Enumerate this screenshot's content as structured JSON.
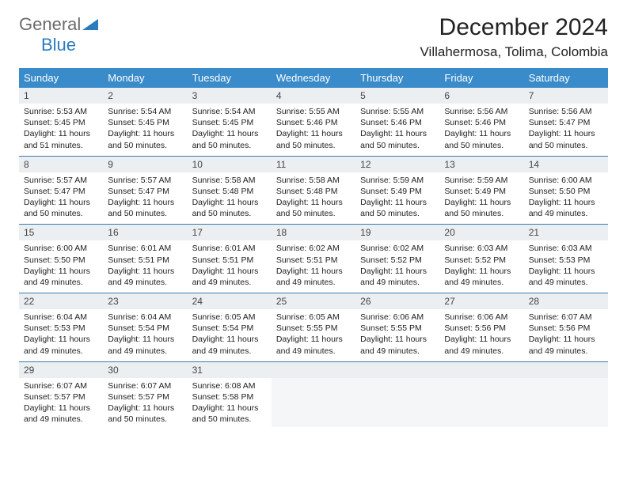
{
  "logo": {
    "part1": "General",
    "part2": "Blue"
  },
  "title": "December 2024",
  "location": "Villahermosa, Tolima, Colombia",
  "colors": {
    "header_bg": "#3a8bc9",
    "header_text": "#ffffff",
    "daynum_bg": "#eceff1",
    "week_border": "#3a7ab0",
    "logo_gray": "#6b6b6b",
    "logo_blue": "#2b7bbf"
  },
  "day_names": [
    "Sunday",
    "Monday",
    "Tuesday",
    "Wednesday",
    "Thursday",
    "Friday",
    "Saturday"
  ],
  "weeks": [
    [
      {
        "n": "1",
        "sunrise": "5:53 AM",
        "sunset": "5:45 PM",
        "dl1": "11 hours",
        "dl2": "and 51 minutes."
      },
      {
        "n": "2",
        "sunrise": "5:54 AM",
        "sunset": "5:45 PM",
        "dl1": "11 hours",
        "dl2": "and 50 minutes."
      },
      {
        "n": "3",
        "sunrise": "5:54 AM",
        "sunset": "5:45 PM",
        "dl1": "11 hours",
        "dl2": "and 50 minutes."
      },
      {
        "n": "4",
        "sunrise": "5:55 AM",
        "sunset": "5:46 PM",
        "dl1": "11 hours",
        "dl2": "and 50 minutes."
      },
      {
        "n": "5",
        "sunrise": "5:55 AM",
        "sunset": "5:46 PM",
        "dl1": "11 hours",
        "dl2": "and 50 minutes."
      },
      {
        "n": "6",
        "sunrise": "5:56 AM",
        "sunset": "5:46 PM",
        "dl1": "11 hours",
        "dl2": "and 50 minutes."
      },
      {
        "n": "7",
        "sunrise": "5:56 AM",
        "sunset": "5:47 PM",
        "dl1": "11 hours",
        "dl2": "and 50 minutes."
      }
    ],
    [
      {
        "n": "8",
        "sunrise": "5:57 AM",
        "sunset": "5:47 PM",
        "dl1": "11 hours",
        "dl2": "and 50 minutes."
      },
      {
        "n": "9",
        "sunrise": "5:57 AM",
        "sunset": "5:47 PM",
        "dl1": "11 hours",
        "dl2": "and 50 minutes."
      },
      {
        "n": "10",
        "sunrise": "5:58 AM",
        "sunset": "5:48 PM",
        "dl1": "11 hours",
        "dl2": "and 50 minutes."
      },
      {
        "n": "11",
        "sunrise": "5:58 AM",
        "sunset": "5:48 PM",
        "dl1": "11 hours",
        "dl2": "and 50 minutes."
      },
      {
        "n": "12",
        "sunrise": "5:59 AM",
        "sunset": "5:49 PM",
        "dl1": "11 hours",
        "dl2": "and 50 minutes."
      },
      {
        "n": "13",
        "sunrise": "5:59 AM",
        "sunset": "5:49 PM",
        "dl1": "11 hours",
        "dl2": "and 50 minutes."
      },
      {
        "n": "14",
        "sunrise": "6:00 AM",
        "sunset": "5:50 PM",
        "dl1": "11 hours",
        "dl2": "and 49 minutes."
      }
    ],
    [
      {
        "n": "15",
        "sunrise": "6:00 AM",
        "sunset": "5:50 PM",
        "dl1": "11 hours",
        "dl2": "and 49 minutes."
      },
      {
        "n": "16",
        "sunrise": "6:01 AM",
        "sunset": "5:51 PM",
        "dl1": "11 hours",
        "dl2": "and 49 minutes."
      },
      {
        "n": "17",
        "sunrise": "6:01 AM",
        "sunset": "5:51 PM",
        "dl1": "11 hours",
        "dl2": "and 49 minutes."
      },
      {
        "n": "18",
        "sunrise": "6:02 AM",
        "sunset": "5:51 PM",
        "dl1": "11 hours",
        "dl2": "and 49 minutes."
      },
      {
        "n": "19",
        "sunrise": "6:02 AM",
        "sunset": "5:52 PM",
        "dl1": "11 hours",
        "dl2": "and 49 minutes."
      },
      {
        "n": "20",
        "sunrise": "6:03 AM",
        "sunset": "5:52 PM",
        "dl1": "11 hours",
        "dl2": "and 49 minutes."
      },
      {
        "n": "21",
        "sunrise": "6:03 AM",
        "sunset": "5:53 PM",
        "dl1": "11 hours",
        "dl2": "and 49 minutes."
      }
    ],
    [
      {
        "n": "22",
        "sunrise": "6:04 AM",
        "sunset": "5:53 PM",
        "dl1": "11 hours",
        "dl2": "and 49 minutes."
      },
      {
        "n": "23",
        "sunrise": "6:04 AM",
        "sunset": "5:54 PM",
        "dl1": "11 hours",
        "dl2": "and 49 minutes."
      },
      {
        "n": "24",
        "sunrise": "6:05 AM",
        "sunset": "5:54 PM",
        "dl1": "11 hours",
        "dl2": "and 49 minutes."
      },
      {
        "n": "25",
        "sunrise": "6:05 AM",
        "sunset": "5:55 PM",
        "dl1": "11 hours",
        "dl2": "and 49 minutes."
      },
      {
        "n": "26",
        "sunrise": "6:06 AM",
        "sunset": "5:55 PM",
        "dl1": "11 hours",
        "dl2": "and 49 minutes."
      },
      {
        "n": "27",
        "sunrise": "6:06 AM",
        "sunset": "5:56 PM",
        "dl1": "11 hours",
        "dl2": "and 49 minutes."
      },
      {
        "n": "28",
        "sunrise": "6:07 AM",
        "sunset": "5:56 PM",
        "dl1": "11 hours",
        "dl2": "and 49 minutes."
      }
    ],
    [
      {
        "n": "29",
        "sunrise": "6:07 AM",
        "sunset": "5:57 PM",
        "dl1": "11 hours",
        "dl2": "and 49 minutes."
      },
      {
        "n": "30",
        "sunrise": "6:07 AM",
        "sunset": "5:57 PM",
        "dl1": "11 hours",
        "dl2": "and 50 minutes."
      },
      {
        "n": "31",
        "sunrise": "6:08 AM",
        "sunset": "5:58 PM",
        "dl1": "11 hours",
        "dl2": "and 50 minutes."
      },
      {
        "empty": true
      },
      {
        "empty": true
      },
      {
        "empty": true
      },
      {
        "empty": true
      }
    ]
  ],
  "labels": {
    "sunrise_prefix": "Sunrise: ",
    "sunset_prefix": "Sunset: ",
    "daylight_prefix": "Daylight: "
  }
}
